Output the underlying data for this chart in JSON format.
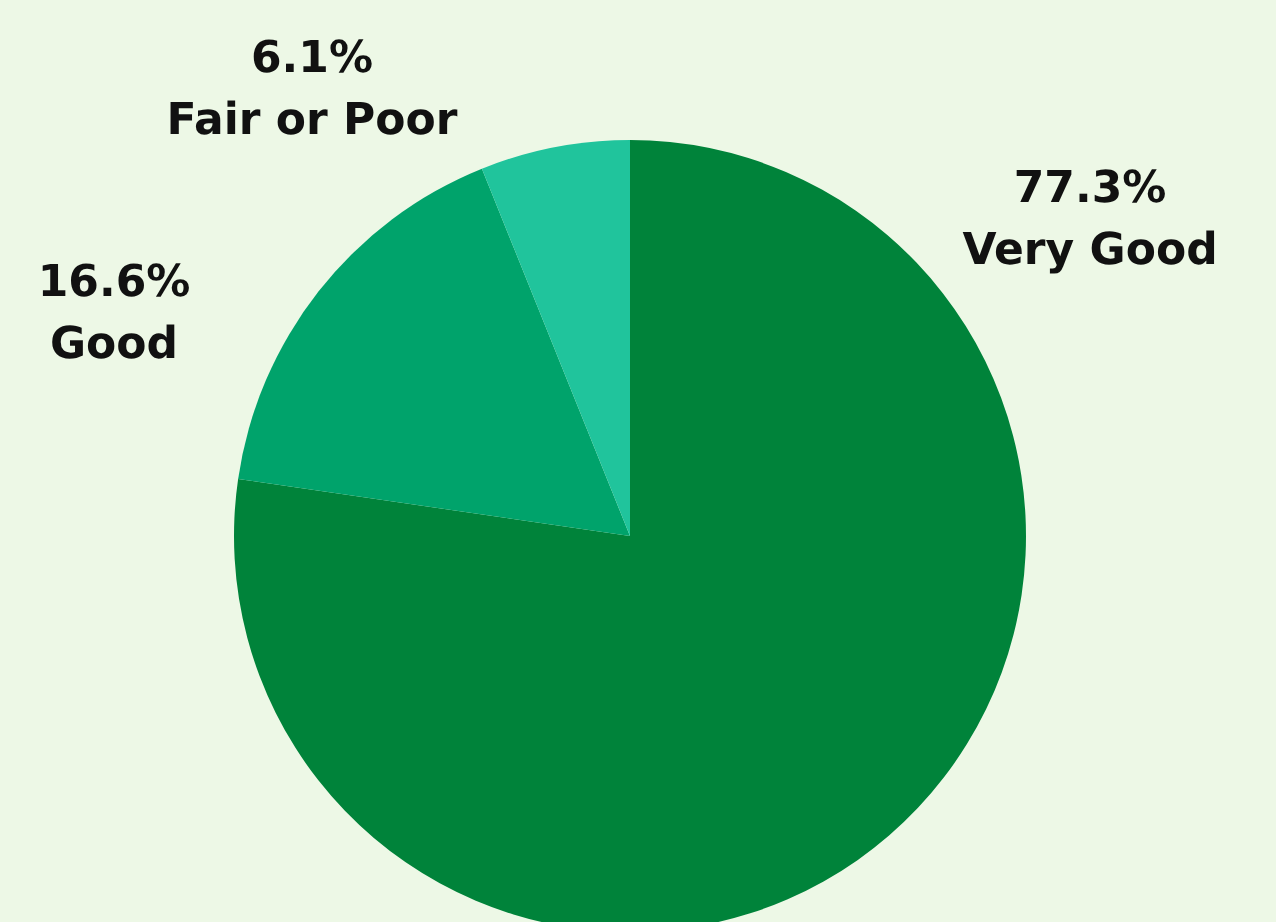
{
  "chart_data": {
    "type": "pie",
    "categories": [
      "Very Good",
      "Good",
      "Fair or Poor"
    ],
    "values": [
      77.3,
      16.6,
      6.1
    ],
    "colors": [
      "#00833a",
      "#00a36b",
      "#20c49c"
    ],
    "value_labels": [
      "77.3%",
      "16.6%",
      "6.1%"
    ]
  }
}
